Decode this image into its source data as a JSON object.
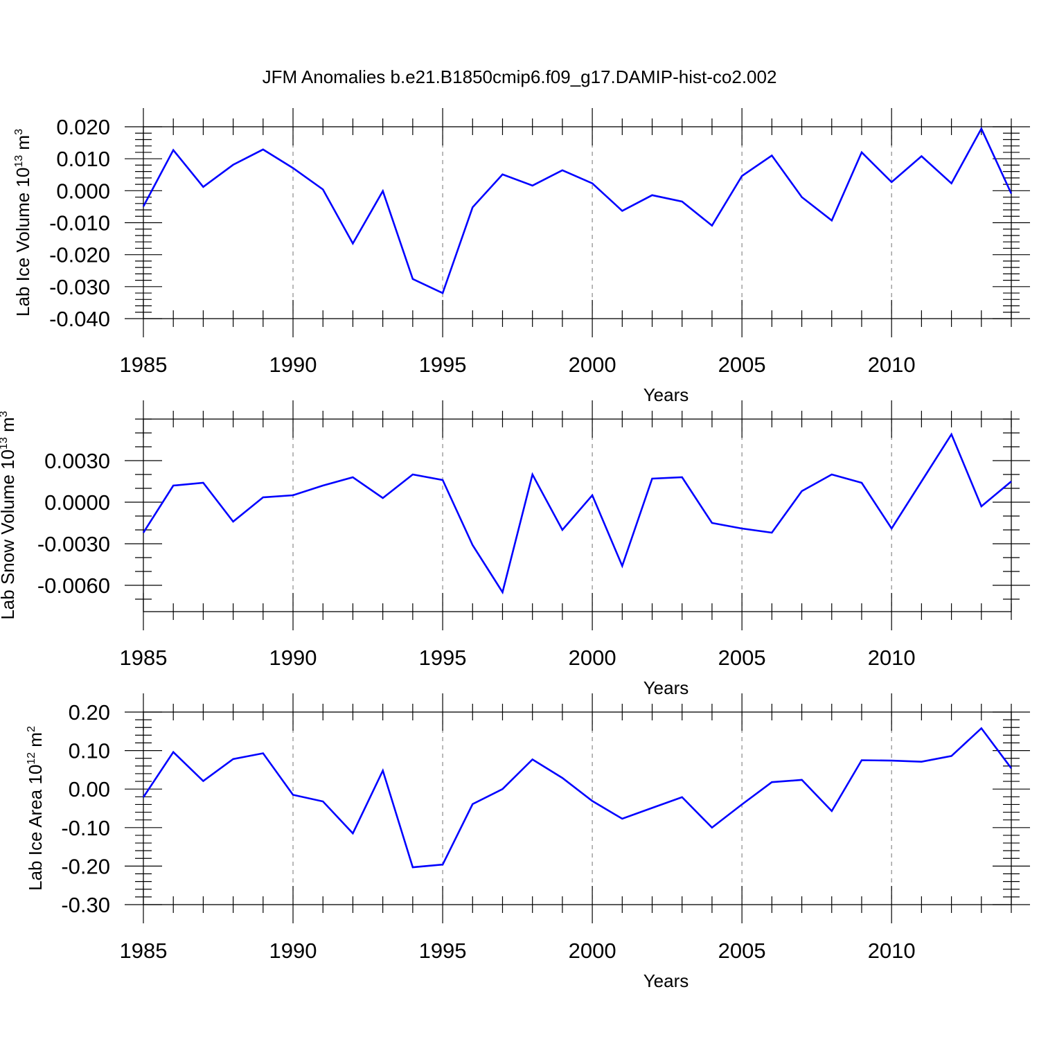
{
  "figure_title": "JFM Anomalies b.e21.B1850cmip6.f09_g17.DAMIP-hist-co2.002",
  "series_color": "#0000ff",
  "chart_data": [
    {
      "type": "line",
      "title": "JFM Anomalies b.e21.B1850cmip6.f09_g17.DAMIP-hist-co2.002",
      "xlabel": "Years",
      "ylabel": "Lab Ice Volume 10^13 m^3",
      "ylabel_main": "Lab Ice Volume 10",
      "ylabel_exp1": "13",
      "ylabel_unit": " m",
      "ylabel_exp2": "3",
      "xlim": [
        1985,
        2014
      ],
      "ylim": [
        -0.04,
        0.02
      ],
      "x_ticks": [
        1985,
        1990,
        1995,
        2000,
        2005,
        2010
      ],
      "x_tick_labels": [
        "1985",
        "1990",
        "1995",
        "2000",
        "2005",
        "2010"
      ],
      "y_ticks": [
        0.02,
        0.01,
        0.0,
        -0.01,
        -0.02,
        -0.03,
        -0.04
      ],
      "y_tick_labels": [
        "0.020",
        "0.010",
        "0.000",
        "-0.010",
        "-0.020",
        "-0.030",
        "-0.040"
      ],
      "y_minor_step": 0.002,
      "x": [
        1985,
        1986,
        1987,
        1988,
        1989,
        1990,
        1991,
        1992,
        1993,
        1994,
        1995,
        1996,
        1997,
        1998,
        1999,
        2000,
        2001,
        2002,
        2003,
        2004,
        2005,
        2006,
        2007,
        2008,
        2009,
        2010,
        2011,
        2012,
        2013,
        2014
      ],
      "series": [
        {
          "name": "Lab Ice Volume",
          "values": [
            -0.0049,
            0.0127,
            0.0012,
            0.0081,
            0.0129,
            0.0071,
            0.0004,
            -0.0165,
            -0.0001,
            -0.0276,
            -0.032,
            -0.0052,
            0.0051,
            0.0016,
            0.0064,
            0.0023,
            -0.0063,
            -0.0014,
            -0.0034,
            -0.0109,
            0.0046,
            0.011,
            -0.002,
            -0.0093,
            0.012,
            0.0027,
            0.0108,
            0.0023,
            0.0194,
            -0.0009
          ]
        }
      ]
    },
    {
      "type": "line",
      "xlabel": "Years",
      "ylabel": "Lab Snow Volume 10^13 m^3",
      "ylabel_main": "Lab Snow Volume 10",
      "ylabel_exp1": "13",
      "ylabel_unit": " m",
      "ylabel_exp2": "3",
      "xlim": [
        1985,
        2014
      ],
      "ylim": [
        -0.0079,
        0.006
      ],
      "x_ticks": [
        1985,
        1990,
        1995,
        2000,
        2005,
        2010
      ],
      "x_tick_labels": [
        "1985",
        "1990",
        "1995",
        "2000",
        "2005",
        "2010"
      ],
      "y_ticks": [
        0.003,
        0.0,
        -0.003,
        -0.006
      ],
      "y_tick_labels": [
        "0.0030",
        "0.0000",
        "-0.0030",
        "-0.0060"
      ],
      "y_minor_step": 0.001,
      "x": [
        1985,
        1986,
        1987,
        1988,
        1989,
        1990,
        1991,
        1992,
        1993,
        1994,
        1995,
        1996,
        1997,
        1998,
        1999,
        2000,
        2001,
        2002,
        2003,
        2004,
        2005,
        2006,
        2007,
        2008,
        2009,
        2010,
        2011,
        2012,
        2013,
        2014
      ],
      "series": [
        {
          "name": "Lab Snow Volume",
          "values": [
            -0.0022,
            0.0012,
            0.0014,
            -0.0014,
            0.00035,
            0.0005,
            0.0012,
            0.0018,
            0.0003,
            0.002,
            0.0016,
            -0.0031,
            -0.0065,
            0.002,
            -0.002,
            0.0005,
            -0.0046,
            0.0017,
            0.0018,
            -0.0015,
            -0.0019,
            -0.0022,
            0.0008,
            0.002,
            0.0014,
            -0.0019,
            0.0015,
            0.0049,
            -0.0003,
            0.0015
          ]
        }
      ]
    },
    {
      "type": "line",
      "xlabel": "Years",
      "ylabel": "Lab Ice Area 10^12 m^2",
      "ylabel_main": "Lab Ice Area 10",
      "ylabel_exp1": "12",
      "ylabel_unit": " m",
      "ylabel_exp2": "2",
      "xlim": [
        1985,
        2014
      ],
      "ylim": [
        -0.3,
        0.2
      ],
      "x_ticks": [
        1985,
        1990,
        1995,
        2000,
        2005,
        2010
      ],
      "x_tick_labels": [
        "1985",
        "1990",
        "1995",
        "2000",
        "2005",
        "2010"
      ],
      "y_ticks": [
        0.2,
        0.1,
        0.0,
        -0.1,
        -0.2,
        -0.3
      ],
      "y_tick_labels": [
        "0.20",
        "0.10",
        "0.00",
        "-0.10",
        "-0.20",
        "-0.30"
      ],
      "y_minor_step": 0.02,
      "x": [
        1985,
        1986,
        1987,
        1988,
        1989,
        1990,
        1991,
        1992,
        1993,
        1994,
        1995,
        1996,
        1997,
        1998,
        1999,
        2000,
        2001,
        2002,
        2003,
        2004,
        2005,
        2006,
        2007,
        2008,
        2009,
        2010,
        2011,
        2012,
        2013,
        2014
      ],
      "series": [
        {
          "name": "Lab Ice Area",
          "values": [
            -0.021,
            0.096,
            0.021,
            0.078,
            0.093,
            -0.015,
            -0.032,
            -0.115,
            0.048,
            -0.203,
            -0.196,
            -0.039,
            0.0,
            0.077,
            0.029,
            -0.031,
            -0.077,
            -0.049,
            -0.021,
            -0.1,
            -0.04,
            0.018,
            0.024,
            -0.057,
            0.075,
            0.074,
            0.071,
            0.086,
            0.158,
            0.054
          ]
        }
      ]
    }
  ]
}
